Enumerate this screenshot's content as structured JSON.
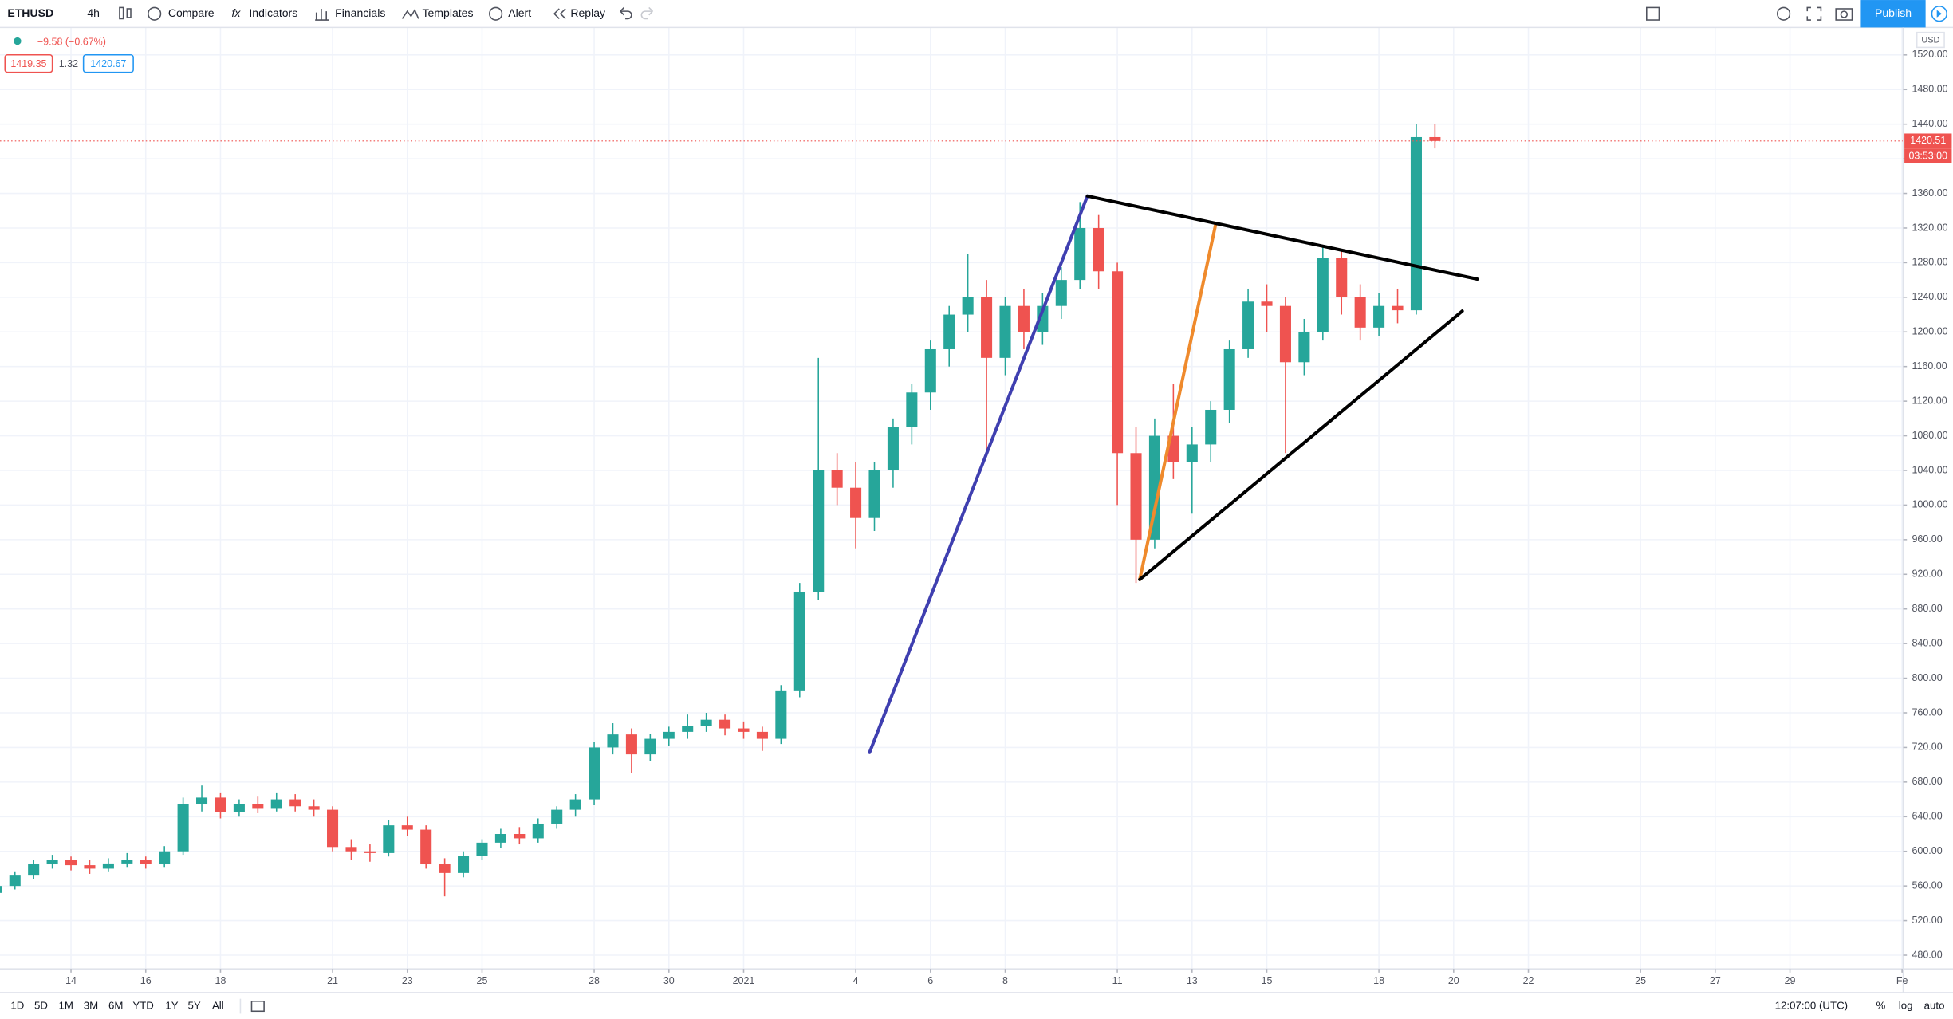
{
  "toolbar": {
    "symbol": "ETHUSD",
    "interval": "4h",
    "buttons": [
      "Compare",
      "Indicators",
      "Financials",
      "Templates",
      "Alert",
      "Replay"
    ],
    "publish": "Publish"
  },
  "legend": {
    "change": "−9.58 (−0.67%)",
    "bid": "1419.35",
    "spread": "1.32",
    "ask": "1420.67"
  },
  "chart_data": {
    "type": "candlestick",
    "x": [
      12,
      12.5,
      13,
      13.5,
      14,
      14.5,
      15,
      15.5,
      16,
      16.5,
      17,
      17.5,
      18,
      18.5,
      19,
      19.5,
      20,
      20.5,
      21,
      21.5,
      22,
      22.5,
      23,
      23.5,
      24,
      24.5,
      25,
      25.5,
      26,
      26.5,
      27,
      27.5,
      28,
      28.5,
      29,
      29.5,
      30,
      30.5,
      31,
      31.5,
      32,
      32.5,
      33,
      33.5,
      34,
      34.5,
      35,
      35.5,
      36,
      36.5,
      37,
      37.5,
      38,
      38.5,
      39,
      39.5,
      40,
      40.5,
      41,
      41.5,
      42,
      42.5,
      43,
      43.5,
      44,
      44.5,
      45,
      45.5,
      46,
      46.5,
      47,
      47.5,
      48,
      48.5,
      49,
      49.5,
      50,
      50.5
    ],
    "open": [
      552,
      560,
      572,
      585,
      590,
      584,
      580,
      586,
      590,
      585,
      600,
      655,
      662,
      645,
      655,
      650,
      660,
      652,
      648,
      605,
      600,
      598,
      630,
      625,
      585,
      575,
      595,
      610,
      620,
      615,
      632,
      648,
      660,
      720,
      735,
      712,
      730,
      738,
      745,
      752,
      742,
      738,
      730,
      785,
      900,
      1040,
      1020,
      985,
      1040,
      1090,
      1130,
      1180,
      1220,
      1240,
      1170,
      1230,
      1200,
      1230,
      1260,
      1320,
      1270,
      1060,
      960,
      1080,
      1050,
      1070,
      1110,
      1180,
      1235,
      1230,
      1165,
      1200,
      1285,
      1240,
      1205,
      1230,
      1225,
      1425
    ],
    "high": [
      566,
      576,
      590,
      596,
      594,
      590,
      592,
      598,
      594,
      606,
      662,
      676,
      668,
      660,
      664,
      668,
      666,
      660,
      652,
      614,
      608,
      636,
      640,
      630,
      592,
      600,
      614,
      626,
      628,
      638,
      652,
      666,
      726,
      748,
      742,
      736,
      744,
      758,
      760,
      758,
      750,
      744,
      792,
      910,
      1170,
      1060,
      1050,
      1050,
      1100,
      1140,
      1190,
      1230,
      1290,
      1260,
      1240,
      1250,
      1245,
      1275,
      1350,
      1335,
      1280,
      1090,
      1100,
      1140,
      1090,
      1120,
      1190,
      1250,
      1255,
      1240,
      1215,
      1300,
      1295,
      1255,
      1245,
      1250,
      1440,
      1440
    ],
    "low": [
      546,
      556,
      568,
      580,
      578,
      574,
      576,
      582,
      580,
      582,
      596,
      646,
      638,
      640,
      644,
      646,
      646,
      640,
      600,
      590,
      588,
      594,
      618,
      580,
      548,
      570,
      590,
      604,
      608,
      610,
      626,
      640,
      654,
      712,
      690,
      704,
      722,
      730,
      738,
      734,
      730,
      716,
      724,
      778,
      890,
      1000,
      950,
      970,
      1020,
      1070,
      1110,
      1160,
      1200,
      1060,
      1150,
      1180,
      1185,
      1215,
      1250,
      1250,
      1000,
      910,
      950,
      1030,
      990,
      1050,
      1095,
      1170,
      1200,
      1060,
      1150,
      1190,
      1220,
      1190,
      1195,
      1210,
      1220,
      1412
    ],
    "close": [
      560,
      572,
      585,
      590,
      584,
      580,
      586,
      590,
      585,
      600,
      655,
      662,
      645,
      655,
      650,
      660,
      652,
      648,
      605,
      600,
      598,
      630,
      625,
      585,
      575,
      595,
      610,
      620,
      615,
      632,
      648,
      660,
      720,
      735,
      712,
      730,
      738,
      745,
      752,
      742,
      738,
      730,
      785,
      900,
      1040,
      1020,
      985,
      1040,
      1090,
      1130,
      1180,
      1220,
      1240,
      1170,
      1230,
      1200,
      1230,
      1260,
      1320,
      1270,
      1060,
      960,
      1080,
      1050,
      1070,
      1110,
      1180,
      1235,
      1230,
      1165,
      1200,
      1285,
      1240,
      1205,
      1230,
      1225,
      1425,
      1420.51
    ],
    "up_color": "#26a69a",
    "down_color": "#ef5350",
    "xlim": [
      12.1,
      63.03
    ],
    "ylim": [
      464.2,
      1551.7
    ],
    "grid": true,
    "xticks": [
      14,
      16,
      18,
      21,
      23,
      25,
      28,
      30,
      {
        "value": 32,
        "label": "2021"
      },
      {
        "value": 35,
        "label": "4"
      },
      {
        "value": 37,
        "label": "6"
      },
      {
        "value": 39,
        "label": "8"
      },
      {
        "value": 42,
        "label": "11"
      },
      {
        "value": 44,
        "label": "13"
      },
      {
        "value": 46,
        "label": "15"
      },
      {
        "value": 49,
        "label": "18"
      },
      {
        "value": 51,
        "label": "20"
      },
      {
        "value": 53,
        "label": "22"
      },
      {
        "value": 56,
        "label": "25"
      },
      {
        "value": 58,
        "label": "27"
      },
      {
        "value": 60,
        "label": "29"
      },
      {
        "value": 63,
        "label": "Fe"
      }
    ],
    "yticks": [
      {
        "value": 480,
        "label": "480.00"
      },
      {
        "value": 520,
        "label": "520.00"
      },
      {
        "value": 560,
        "label": "560.00"
      },
      {
        "value": 600,
        "label": "600.00"
      },
      {
        "value": 640,
        "label": "640.00"
      },
      {
        "value": 680,
        "label": "680.00"
      },
      {
        "value": 720,
        "label": "720.00"
      },
      {
        "value": 760,
        "label": "760.00"
      },
      {
        "value": 800,
        "label": "800.00"
      },
      {
        "value": 840,
        "label": "840.00"
      },
      {
        "value": 880,
        "label": "880.00"
      },
      {
        "value": 920,
        "label": "920.00"
      },
      {
        "value": 960,
        "label": "960.00"
      },
      {
        "value": 1000,
        "label": "1000.00"
      },
      {
        "value": 1040,
        "label": "1040.00"
      },
      {
        "value": 1080,
        "label": "1080.00"
      },
      {
        "value": 1120,
        "label": "1120.00"
      },
      {
        "value": 1160,
        "label": "1160.00"
      },
      {
        "value": 1200,
        "label": "1200.00"
      },
      {
        "value": 1240,
        "label": "1240.00"
      },
      {
        "value": 1280,
        "label": "1280.00"
      },
      {
        "value": 1320,
        "label": "1320.00"
      },
      {
        "value": 1360,
        "label": "1360.00"
      },
      {
        "value": 1400,
        "label": "1400.00"
      },
      {
        "value": 1440,
        "label": "1440.00"
      },
      {
        "value": 1480,
        "label": "1480.00"
      },
      {
        "value": 1520,
        "label": "1520.00"
      }
    ],
    "currency": "USD",
    "last_price": 1420.51,
    "countdown": "03:53:00",
    "drawings": [
      {
        "color": "#3f3fb0",
        "points": [
          [
            35.37,
            714.2
          ],
          [
            41.2,
            1357
          ]
        ]
      },
      {
        "color": "#ef8a2c",
        "points": [
          [
            42.6,
            914
          ],
          [
            44.63,
            1324
          ]
        ]
      },
      {
        "color": "#000000",
        "points": [
          [
            41.2,
            1357
          ],
          [
            51.63,
            1261
          ]
        ]
      },
      {
        "color": "#000000",
        "points": [
          [
            42.6,
            914
          ],
          [
            51.23,
            1224
          ]
        ]
      }
    ]
  },
  "bottom_bar": {
    "ranges": [
      "1D",
      "5D",
      "1M",
      "3M",
      "6M",
      "YTD",
      "1Y",
      "5Y",
      "All"
    ],
    "time": "12:07:00 (UTC)",
    "options": [
      "%",
      "log",
      "auto"
    ]
  }
}
